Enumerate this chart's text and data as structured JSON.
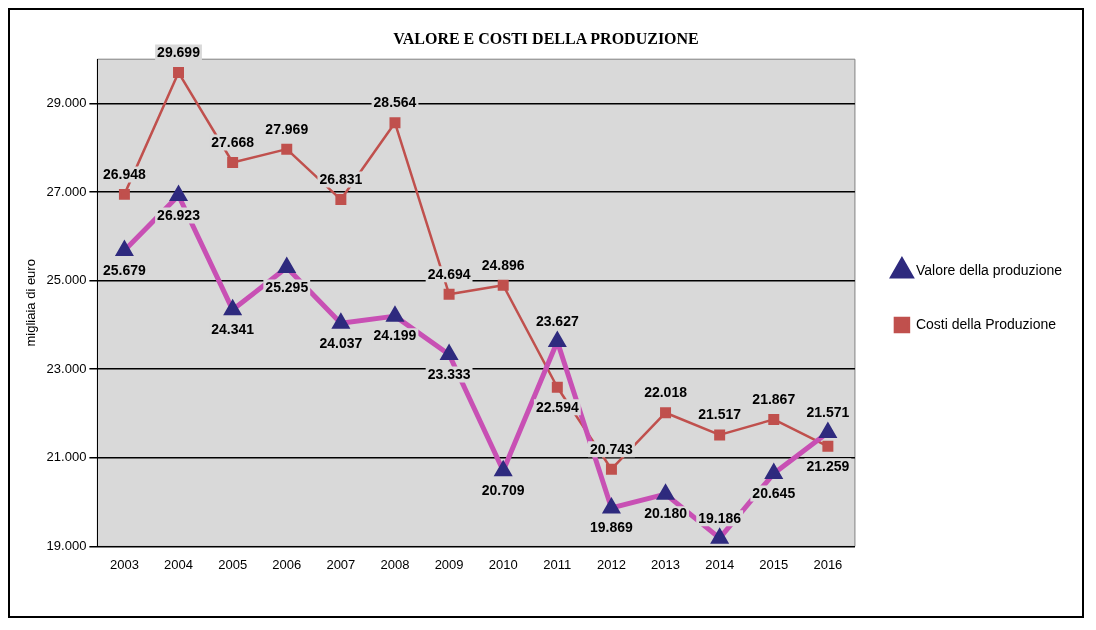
{
  "chart_data": {
    "type": "line",
    "title": "VALORE E COSTI DELLA PRODUZIONE",
    "ylabel": "migliaia di euro",
    "categories": [
      "2003",
      "2004",
      "2005",
      "2006",
      "2007",
      "2008",
      "2009",
      "2010",
      "2011",
      "2012",
      "2013",
      "2014",
      "2015",
      "2016"
    ],
    "series": [
      {
        "name": "Valore della produzione",
        "color": "#c850b4",
        "marker": "triangle",
        "values": [
          25679,
          26923,
          24341,
          25295,
          24037,
          24199,
          23333,
          20709,
          23627,
          19869,
          20180,
          19186,
          20645,
          21571
        ],
        "value_labels": [
          "25.679",
          "26.923",
          "24.341",
          "25.295",
          "24.037",
          "24.199",
          "23.333",
          "20.709",
          "23.627",
          "19.869",
          "20.180",
          "19.186",
          "20.645",
          "21.571"
        ]
      },
      {
        "name": "Costi della Produzione",
        "color": "#c0504d",
        "marker": "square",
        "values": [
          26948,
          29699,
          27668,
          27969,
          26831,
          28564,
          24694,
          24896,
          22594,
          20743,
          22018,
          21517,
          21867,
          21259
        ],
        "value_labels": [
          "26.948",
          "29.699",
          "27.668",
          "27.969",
          "26.831",
          "28.564",
          "24.694",
          "24.896",
          "22.594",
          "20.743",
          "22.018",
          "21.517",
          "21.867",
          "21.259"
        ]
      }
    ],
    "ylim": [
      19000,
      30000
    ],
    "yticks": [
      {
        "value": 19000,
        "label": "19.000"
      },
      {
        "value": 21000,
        "label": "21.000"
      },
      {
        "value": 23000,
        "label": "23.000"
      },
      {
        "value": 25000,
        "label": "25.000"
      },
      {
        "value": 27000,
        "label": "27.000"
      },
      {
        "value": 29000,
        "label": "29.000"
      }
    ],
    "grid": "y",
    "legend": "right",
    "line_style": "solid"
  }
}
